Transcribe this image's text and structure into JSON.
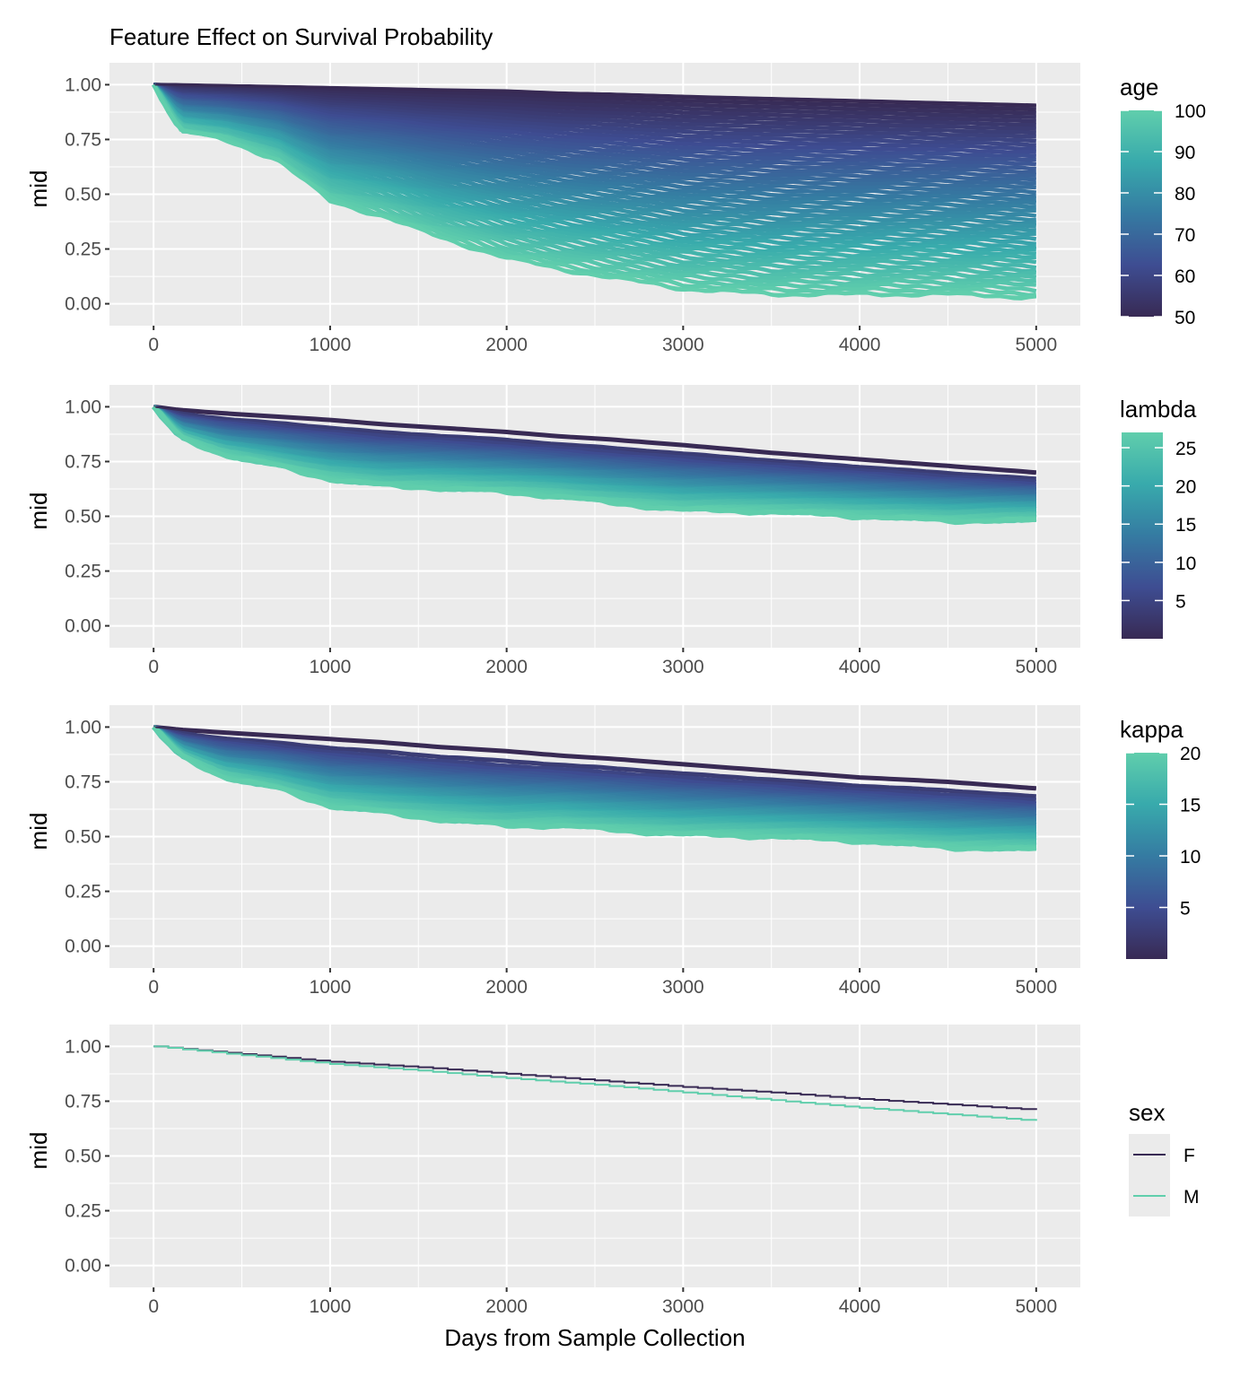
{
  "chart_data": {
    "type": "line",
    "title": "Feature Effect on Survival Probability",
    "xlabel": "Days from Sample Collection",
    "xlim": [
      -250,
      5250
    ],
    "x_ticks": [
      0,
      1000,
      2000,
      3000,
      4000,
      5000
    ],
    "x_tick_labels": [
      "0",
      "1000",
      "2000",
      "3000",
      "4000",
      "5000"
    ],
    "grid": true,
    "panels": [
      {
        "ylabel": "mid",
        "ylim": [
          -0.1,
          1.1
        ],
        "y_ticks": [
          0,
          0.25,
          0.5,
          0.75,
          1.0
        ],
        "y_tick_labels": [
          "0.00",
          "0.25",
          "0.50",
          "0.75",
          "1.00"
        ],
        "legend": {
          "title": "age",
          "type": "colorbar",
          "range": [
            50,
            100
          ],
          "ticks": [
            50,
            60,
            70,
            80,
            90,
            100
          ],
          "tick_labels": [
            "50",
            "60",
            "70",
            "80",
            "90",
            "100"
          ],
          "placement": "right"
        },
        "color_range": [
          50,
          100
        ],
        "n_lines": 50,
        "x": [
          0,
          150,
          400,
          700,
          1000,
          1300,
          1600,
          2000,
          2300,
          2600,
          3000,
          3500,
          4000,
          4500,
          5000
        ],
        "series": [
          {
            "name": "age=50",
            "value": 50,
            "values": [
              1.0,
              0.998,
              0.994,
              0.99,
              0.985,
              0.98,
              0.975,
              0.97,
              0.96,
              0.955,
              0.945,
              0.935,
              0.925,
              0.915,
              0.905
            ]
          },
          {
            "name": "age=100",
            "value": 100,
            "values": [
              1.0,
              0.79,
              0.75,
              0.66,
              0.47,
              0.4,
              0.31,
              0.21,
              0.16,
              0.12,
              0.07,
              0.045,
              0.045,
              0.045,
              0.03
            ]
          }
        ]
      },
      {
        "ylabel": "mid",
        "ylim": [
          -0.1,
          1.1
        ],
        "y_ticks": [
          0,
          0.25,
          0.5,
          0.75,
          1.0
        ],
        "y_tick_labels": [
          "0.00",
          "0.25",
          "0.50",
          "0.75",
          "1.00"
        ],
        "legend": {
          "title": "lambda",
          "type": "colorbar",
          "range": [
            0,
            27
          ],
          "ticks": [
            5,
            10,
            15,
            20,
            25
          ],
          "tick_labels": [
            "5",
            "10",
            "15",
            "20",
            "25"
          ],
          "placement": "right"
        },
        "color_range": [
          0,
          27
        ],
        "n_lines": 40,
        "x": [
          0,
          150,
          400,
          700,
          1000,
          1300,
          1600,
          2000,
          2300,
          2600,
          3000,
          3500,
          4000,
          4500,
          5000
        ],
        "series": [
          {
            "name": "lambda=min",
            "value": 0,
            "values": [
              1.0,
              0.985,
              0.97,
              0.955,
              0.94,
              0.92,
              0.905,
              0.885,
              0.865,
              0.85,
              0.825,
              0.79,
              0.76,
              0.73,
              0.7
            ]
          },
          {
            "name": "lambda=max",
            "value": 27,
            "values": [
              1.0,
              0.86,
              0.78,
              0.73,
              0.67,
              0.64,
              0.63,
              0.61,
              0.59,
              0.56,
              0.53,
              0.52,
              0.5,
              0.48,
              0.48
            ]
          }
        ]
      },
      {
        "ylabel": "mid",
        "ylim": [
          -0.1,
          1.1
        ],
        "y_ticks": [
          0,
          0.25,
          0.5,
          0.75,
          1.0
        ],
        "y_tick_labels": [
          "0.00",
          "0.25",
          "0.50",
          "0.75",
          "1.00"
        ],
        "legend": {
          "title": "kappa",
          "type": "colorbar",
          "range": [
            0,
            20
          ],
          "ticks": [
            5,
            10,
            15,
            20
          ],
          "tick_labels": [
            "5",
            "10",
            "15",
            "20"
          ],
          "placement": "right"
        },
        "color_range": [
          0,
          20
        ],
        "n_lines": 40,
        "x": [
          0,
          150,
          400,
          700,
          1000,
          1300,
          1600,
          2000,
          2300,
          2600,
          3000,
          3500,
          4000,
          4500,
          5000
        ],
        "series": [
          {
            "name": "kappa=min",
            "value": 0,
            "values": [
              1.0,
              0.988,
              0.975,
              0.96,
              0.945,
              0.93,
              0.91,
              0.89,
              0.87,
              0.855,
              0.83,
              0.8,
              0.77,
              0.75,
              0.72
            ]
          },
          {
            "name": "kappa=max",
            "value": 20,
            "values": [
              1.0,
              0.87,
              0.77,
              0.72,
              0.64,
              0.61,
              0.58,
              0.55,
              0.55,
              0.53,
              0.51,
              0.5,
              0.48,
              0.45,
              0.44
            ]
          }
        ]
      },
      {
        "ylabel": "mid",
        "ylim": [
          -0.1,
          1.1
        ],
        "y_ticks": [
          0,
          0.25,
          0.5,
          0.75,
          1.0
        ],
        "y_tick_labels": [
          "0.00",
          "0.25",
          "0.50",
          "0.75",
          "1.00"
        ],
        "legend": {
          "title": "sex",
          "type": "discrete",
          "entries": [
            {
              "label": "F",
              "color": "#382A54"
            },
            {
              "label": "M",
              "color": "#60CEAC"
            }
          ],
          "placement": "right"
        },
        "x": [
          0,
          500,
          1000,
          1500,
          2000,
          2500,
          3000,
          3500,
          4000,
          4500,
          5000
        ],
        "series": [
          {
            "name": "F",
            "color": "#382A54",
            "values": [
              1.0,
              0.965,
              0.93,
              0.905,
              0.875,
              0.845,
              0.815,
              0.79,
              0.76,
              0.735,
              0.71
            ]
          },
          {
            "name": "M",
            "color": "#60CEAC",
            "values": [
              1.0,
              0.96,
              0.92,
              0.89,
              0.855,
              0.825,
              0.79,
              0.755,
              0.72,
              0.69,
              0.66
            ]
          }
        ]
      }
    ]
  },
  "colors": {
    "panel_bg": "#EBEBEB",
    "grid": "#FFFFFF",
    "low": "#382A54",
    "mid_low": "#3E4D92",
    "mid": "#357BA2",
    "mid_high": "#38AAAC",
    "high": "#60CEAC"
  }
}
